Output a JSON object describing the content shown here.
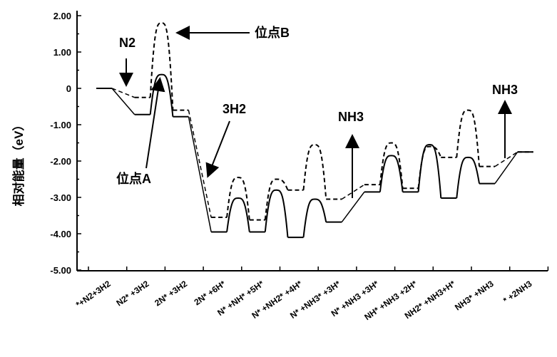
{
  "chart_data": {
    "type": "line",
    "ylabel": "相对能量（eV）",
    "yticks": [
      "2.00",
      "1.00",
      "0",
      "-1.00",
      "-2.00",
      "-3.00",
      "-4.00",
      "-5.00"
    ],
    "ylim": [
      -5,
      2
    ],
    "categories": [
      "*+N2+3H2",
      "N2* +3H2",
      "2N* +3H2",
      "2N* +6H*",
      "N* +NH* +5H*",
      "N* +NH2* +4H*",
      "N* +NH3* +3H*",
      "N* +NH3 +3H*",
      "NH* +NH3 +2H*",
      "NH2* +NH3+H*",
      "NH3* +NH3",
      "* +2NH3"
    ],
    "series": [
      {
        "name": "位点A",
        "style": "solid",
        "levels": [
          0,
          -0.72,
          -0.78,
          -3.95,
          -3.95,
          -4.1,
          -3.68,
          -2.85,
          -2.85,
          -3.02,
          -2.62,
          -1.75
        ],
        "barriers": [
          0.38,
          -3.02,
          -2.8,
          -3.05,
          -1.85,
          -1.55,
          -1.9
        ]
      },
      {
        "name": "位点B",
        "style": "dashed",
        "levels": [
          0,
          -0.25,
          -0.6,
          -3.55,
          -3.62,
          -2.8,
          -3.05,
          -2.65,
          -2.75,
          -1.9,
          -2.15,
          -1.75
        ],
        "barriers": [
          1.8,
          -2.45,
          -2.5,
          -1.55,
          -1.5,
          -1.6,
          -0.6
        ]
      }
    ],
    "annotations": {
      "site_a": "位点A",
      "site_b": "位点B",
      "n2": "N2",
      "h2": "3H2",
      "nh3_1": "NH3",
      "nh3_2": "NH3"
    },
    "colors": {
      "line": "#000000",
      "level_accent": "#1f3b8a"
    }
  }
}
